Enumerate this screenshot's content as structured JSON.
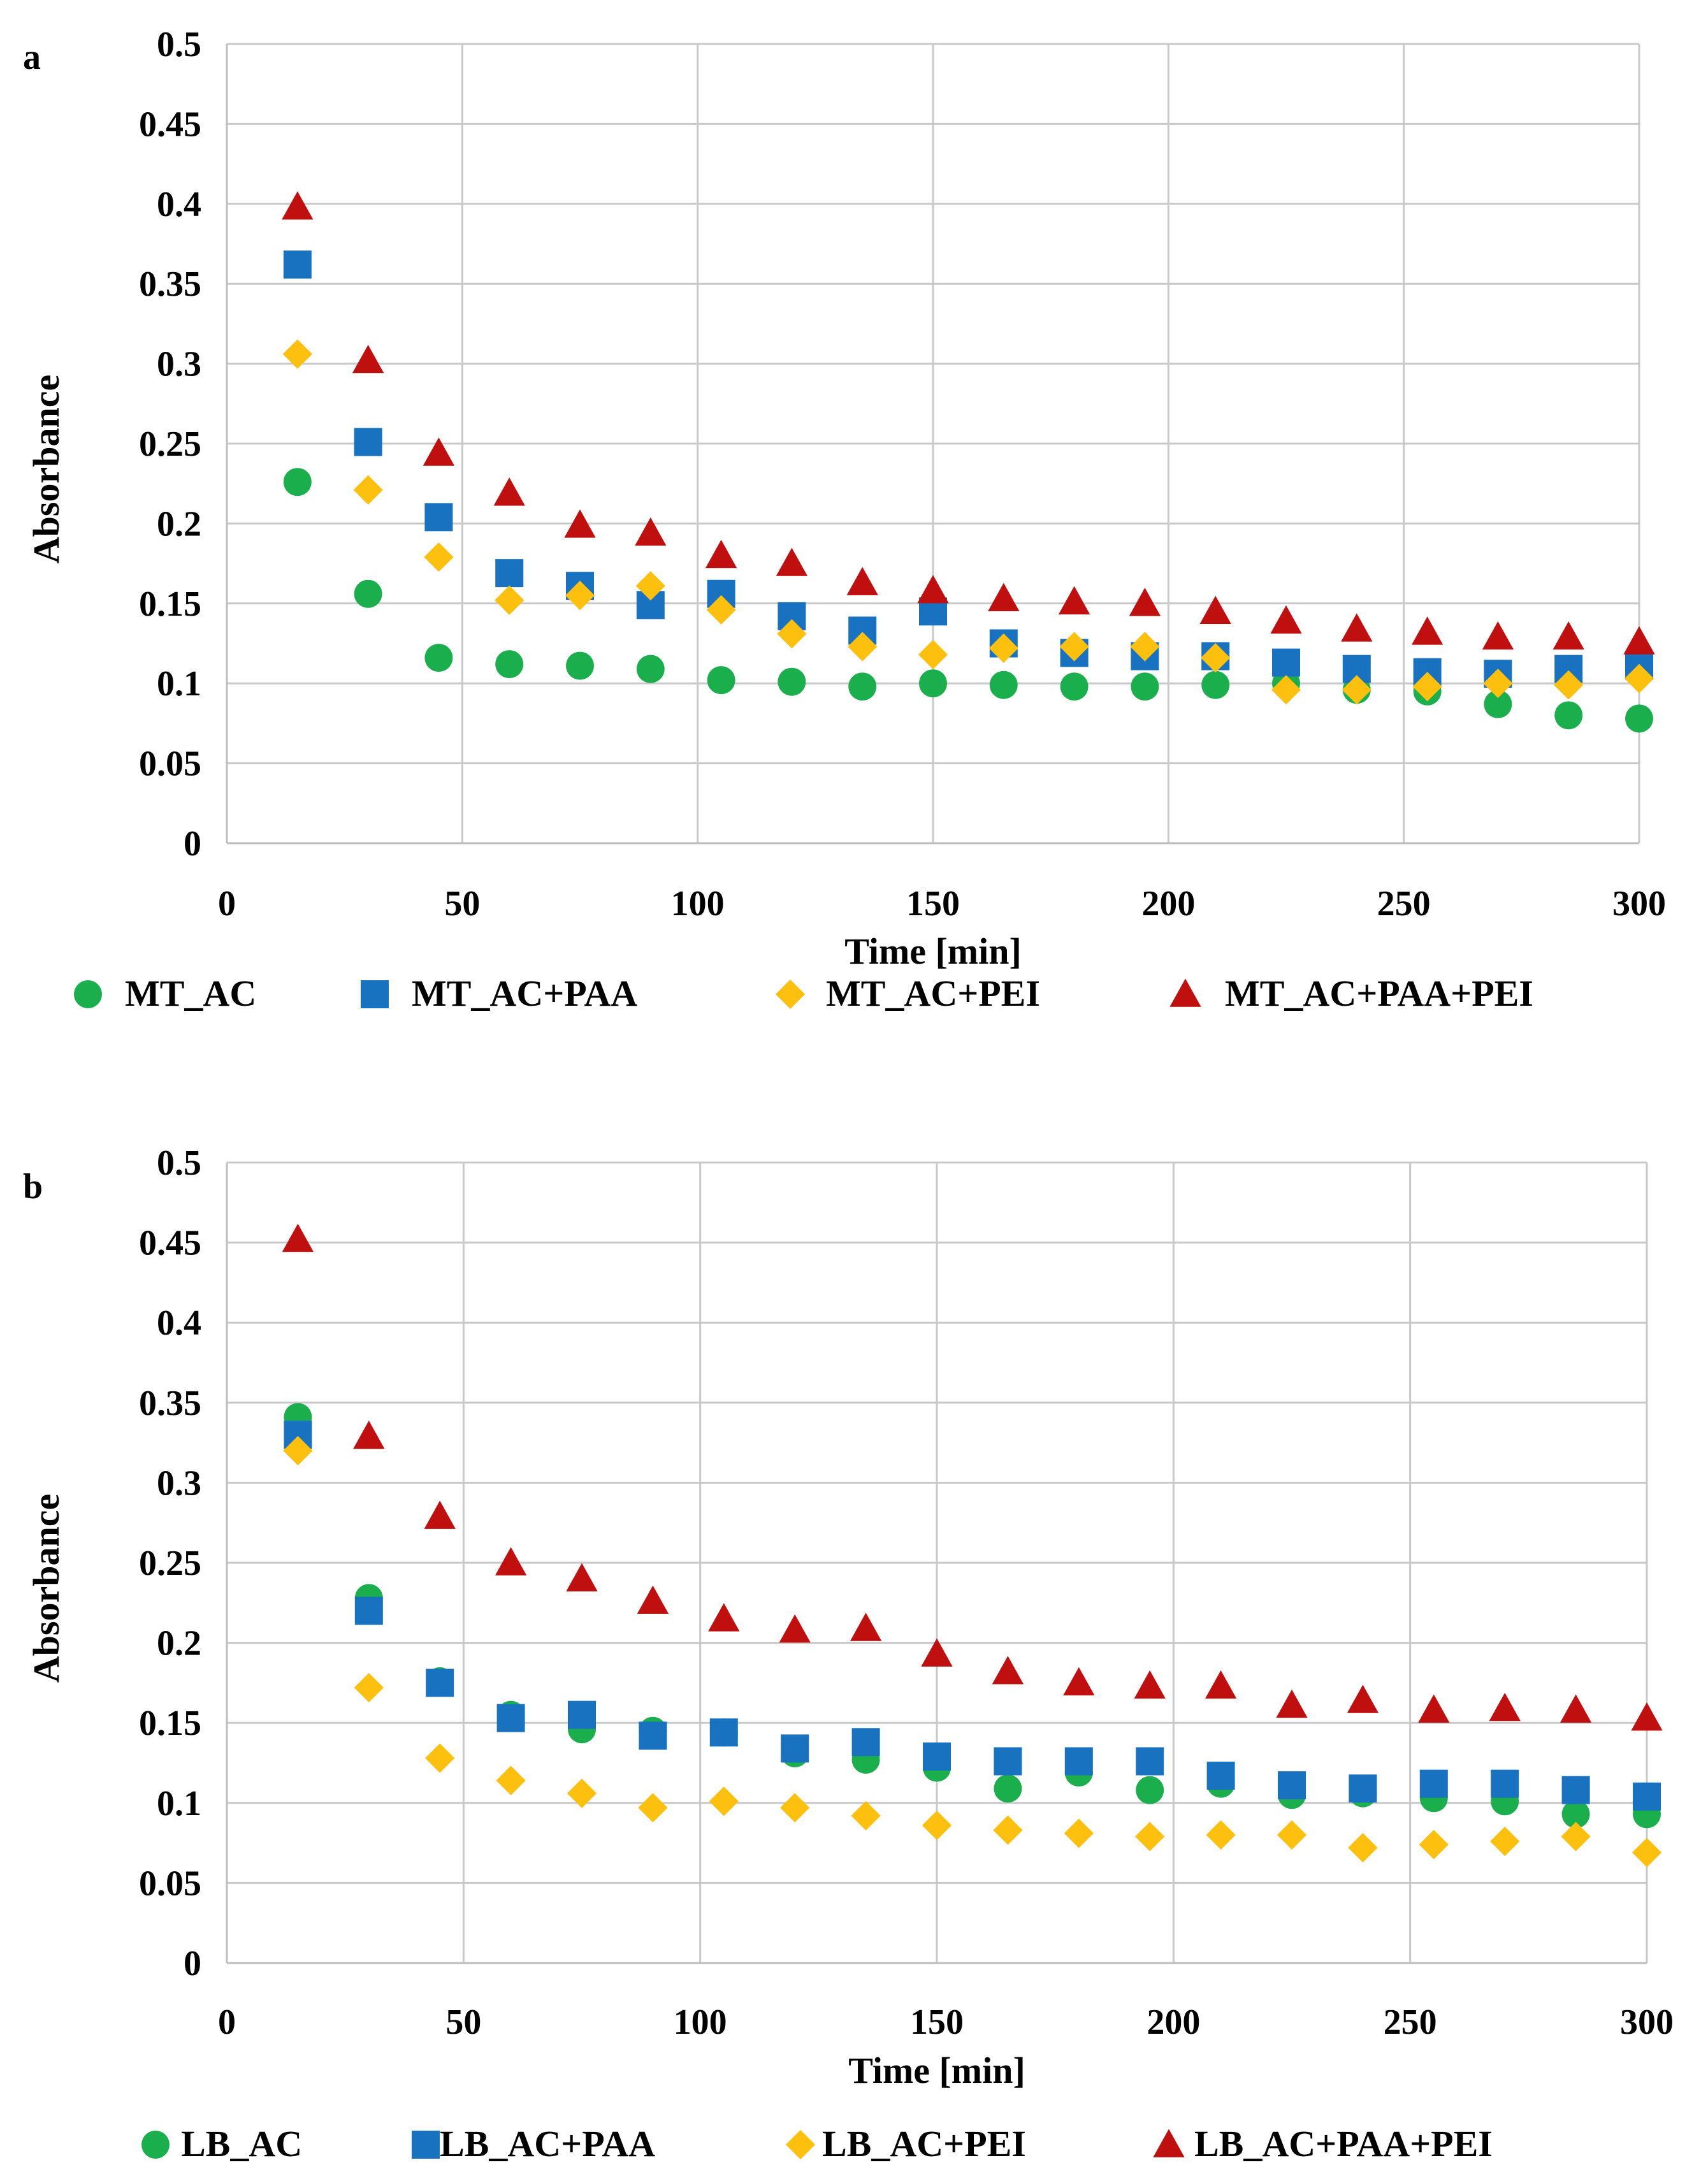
{
  "chart_data": [
    {
      "panel": "a",
      "type": "scatter",
      "title": "",
      "xlabel": "Time [min]",
      "ylabel": "Absorbance",
      "xlim": [
        0,
        300
      ],
      "ylim": [
        0,
        0.5
      ],
      "x_ticks": [
        "0",
        "50",
        "100",
        "150",
        "200",
        "250",
        "300"
      ],
      "y_ticks": [
        "0",
        "0.05",
        "0.1",
        "0.15",
        "0.2",
        "0.25",
        "0.3",
        "0.35",
        "0.4",
        "0.45",
        "0.5"
      ],
      "grid": true,
      "legend": "bottom",
      "x": [
        15,
        30,
        45,
        60,
        75,
        90,
        105,
        120,
        135,
        150,
        165,
        180,
        195,
        210,
        225,
        240,
        255,
        270,
        285,
        300
      ],
      "series": [
        {
          "name": "MT_AC",
          "marker": "circle",
          "color": "#1aae4d",
          "values": [
            0.226,
            0.156,
            0.116,
            0.112,
            0.111,
            0.109,
            0.102,
            0.101,
            0.098,
            0.1,
            0.099,
            0.098,
            0.098,
            0.099,
            0.1,
            0.096,
            0.095,
            0.087,
            0.08,
            0.078
          ]
        },
        {
          "name": "MT_AC+PAA",
          "marker": "square",
          "color": "#1872c0",
          "values": [
            0.362,
            0.251,
            0.204,
            0.169,
            0.161,
            0.149,
            0.156,
            0.142,
            0.133,
            0.145,
            0.125,
            0.119,
            0.117,
            0.117,
            0.113,
            0.109,
            0.107,
            0.106,
            0.109,
            0.111
          ]
        },
        {
          "name": "MT_AC+PEI",
          "marker": "diamond",
          "color": "#fdc00f",
          "values": [
            0.306,
            0.221,
            0.179,
            0.152,
            0.155,
            0.161,
            0.146,
            0.131,
            0.123,
            0.118,
            0.122,
            0.123,
            0.123,
            0.116,
            0.096,
            0.096,
            0.098,
            0.1,
            0.099,
            0.103
          ]
        },
        {
          "name": "MT_AC+PAA+PEI",
          "marker": "triangle",
          "color": "#c00f0f",
          "values": [
            0.398,
            0.302,
            0.244,
            0.219,
            0.199,
            0.194,
            0.18,
            0.175,
            0.163,
            0.158,
            0.153,
            0.151,
            0.15,
            0.145,
            0.139,
            0.134,
            0.132,
            0.129,
            0.129,
            0.126
          ]
        }
      ]
    },
    {
      "panel": "b",
      "type": "scatter",
      "title": "",
      "xlabel": "Time [min]",
      "ylabel": "Absorbance",
      "xlim": [
        0,
        300
      ],
      "ylim": [
        0,
        0.5
      ],
      "x_ticks": [
        "0",
        "50",
        "100",
        "150",
        "200",
        "250",
        "300"
      ],
      "y_ticks": [
        "0",
        "0.05",
        "0.1",
        "0.15",
        "0.2",
        "0.25",
        "0.3",
        "0.35",
        "0.4",
        "0.45",
        "0.5"
      ],
      "grid": true,
      "legend": "bottom",
      "x": [
        15,
        30,
        45,
        60,
        75,
        90,
        105,
        120,
        135,
        150,
        165,
        180,
        195,
        210,
        225,
        240,
        255,
        270,
        285,
        300
      ],
      "series": [
        {
          "name": "LB_AC",
          "marker": "circle",
          "color": "#1aae4d",
          "values": [
            0.341,
            0.228,
            0.176,
            0.155,
            0.146,
            0.145,
            0.144,
            0.131,
            0.127,
            0.122,
            0.109,
            0.119,
            0.108,
            0.112,
            0.105,
            0.106,
            0.103,
            0.101,
            0.093,
            0.093
          ]
        },
        {
          "name": "LB_AC+PAA",
          "marker": "square",
          "color": "#1872c0",
          "values": [
            0.33,
            0.22,
            0.175,
            0.153,
            0.155,
            0.142,
            0.144,
            0.134,
            0.138,
            0.129,
            0.126,
            0.126,
            0.126,
            0.117,
            0.111,
            0.109,
            0.112,
            0.112,
            0.108,
            0.104
          ]
        },
        {
          "name": "LB_AC+PEI",
          "marker": "diamond",
          "color": "#fdc00f",
          "values": [
            0.32,
            0.172,
            0.128,
            0.114,
            0.106,
            0.097,
            0.101,
            0.097,
            0.092,
            0.086,
            0.083,
            0.081,
            0.079,
            0.08,
            0.08,
            0.072,
            0.074,
            0.076,
            0.079,
            0.069
          ]
        },
        {
          "name": "LB_AC+PAA+PEI",
          "marker": "triangle",
          "color": "#c00f0f",
          "values": [
            0.452,
            0.329,
            0.279,
            0.25,
            0.24,
            0.226,
            0.215,
            0.208,
            0.209,
            0.193,
            0.182,
            0.175,
            0.173,
            0.173,
            0.161,
            0.164,
            0.158,
            0.159,
            0.158,
            0.153
          ]
        }
      ]
    }
  ]
}
